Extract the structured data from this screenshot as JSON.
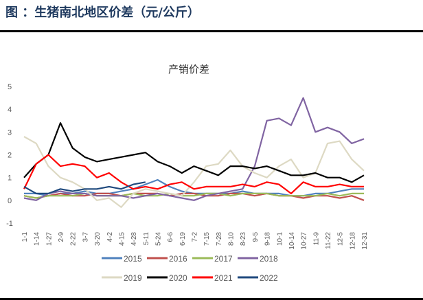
{
  "header": {
    "title": "图 ：生猪南北地区价差（元/公斤）"
  },
  "chart_data": {
    "type": "line",
    "title": "产销价差",
    "xlabel": "",
    "ylabel": "",
    "ylim": [
      -1,
      5
    ],
    "yticks": [
      -1,
      0,
      1,
      2,
      3,
      4,
      5
    ],
    "grid": false,
    "legend_position": "bottom",
    "x": [
      "1-1",
      "1-14",
      "1-27",
      "2-9",
      "2-22",
      "3-7",
      "3-20",
      "4-2",
      "4-15",
      "4-28",
      "5-11",
      "5-24",
      "6-6",
      "6-19",
      "7-2",
      "7-15",
      "7-28",
      "8-10",
      "8-23",
      "9-5",
      "9-18",
      "10-1",
      "10-14",
      "10-27",
      "11-9",
      "11-22",
      "12-5",
      "12-18",
      "12-31"
    ],
    "series": [
      {
        "name": "2015",
        "color": "#4f81bd",
        "values": [
          0.3,
          0.3,
          0.2,
          0.3,
          0.3,
          0.4,
          0.3,
          0.3,
          0.4,
          0.5,
          0.7,
          0.9,
          0.6,
          0.4,
          0.3,
          0.3,
          0.3,
          0.3,
          0.4,
          0.3,
          0.3,
          0.3,
          0.2,
          0.2,
          0.3,
          0.3,
          0.4,
          0.5,
          0.5
        ]
      },
      {
        "name": "2016",
        "color": "#c0504d",
        "values": [
          0.2,
          0.1,
          0.2,
          0.3,
          0.2,
          0.2,
          0.3,
          0.3,
          0.2,
          0.3,
          0.3,
          0.3,
          0.2,
          0.3,
          0.3,
          0.2,
          0.2,
          0.3,
          0.3,
          0.2,
          0.3,
          0.2,
          0.2,
          0.1,
          0.2,
          0.2,
          0.1,
          0.2,
          0.0
        ]
      },
      {
        "name": "2017",
        "color": "#9bbb59",
        "values": [
          0.2,
          0.1,
          0.2,
          0.2,
          0.2,
          0.3,
          0.2,
          0.2,
          0.2,
          0.3,
          0.2,
          0.2,
          0.3,
          0.2,
          0.2,
          0.3,
          0.3,
          0.2,
          0.3,
          0.3,
          0.3,
          0.2,
          0.2,
          0.2,
          0.2,
          0.3,
          0.2,
          0.3,
          0.3
        ]
      },
      {
        "name": "2018",
        "color": "#8064a2",
        "values": [
          0.1,
          0.0,
          0.3,
          0.4,
          0.3,
          0.3,
          0.2,
          0.2,
          0.2,
          0.1,
          0.2,
          0.3,
          0.2,
          0.1,
          0.0,
          0.2,
          0.3,
          0.4,
          0.5,
          1.5,
          3.5,
          3.6,
          3.3,
          4.5,
          3.0,
          3.2,
          3.0,
          2.5,
          2.7
        ]
      },
      {
        "name": "2019",
        "color": "#ddd9c3",
        "values": [
          2.8,
          2.5,
          1.5,
          1.0,
          0.8,
          0.5,
          0.0,
          0.1,
          -0.3,
          0.3,
          0.5,
          0.4,
          0.3,
          0.2,
          0.8,
          1.5,
          1.6,
          2.2,
          1.5,
          1.2,
          1.0,
          1.5,
          1.8,
          1.0,
          1.2,
          2.5,
          2.6,
          1.8,
          1.3
        ]
      },
      {
        "name": "2020",
        "color": "#000000",
        "values": [
          1.0,
          1.6,
          2.0,
          3.4,
          2.3,
          1.9,
          1.7,
          1.8,
          1.9,
          2.0,
          2.1,
          1.7,
          1.5,
          1.2,
          1.5,
          1.3,
          1.1,
          1.5,
          1.5,
          1.4,
          1.5,
          1.3,
          1.1,
          1.1,
          1.2,
          1.0,
          1.0,
          0.8,
          1.1
        ]
      },
      {
        "name": "2021",
        "color": "#ff0000",
        "values": [
          0.5,
          1.6,
          2.0,
          1.5,
          1.6,
          1.5,
          1.0,
          1.2,
          0.8,
          0.5,
          0.6,
          0.5,
          0.7,
          0.8,
          0.5,
          0.6,
          0.6,
          0.6,
          0.7,
          0.6,
          0.8,
          0.7,
          0.3,
          0.8,
          0.6,
          0.6,
          0.7,
          0.6,
          0.6
        ]
      },
      {
        "name": "2022",
        "color": "#1f497d",
        "values": [
          0.6,
          0.3,
          0.3,
          0.5,
          0.4,
          0.5,
          0.5,
          0.6,
          0.5,
          0.7,
          0.8,
          null,
          null,
          null,
          null,
          null,
          null,
          null,
          null,
          null,
          null,
          null,
          null,
          null,
          null,
          null,
          null,
          null,
          null
        ]
      }
    ]
  }
}
